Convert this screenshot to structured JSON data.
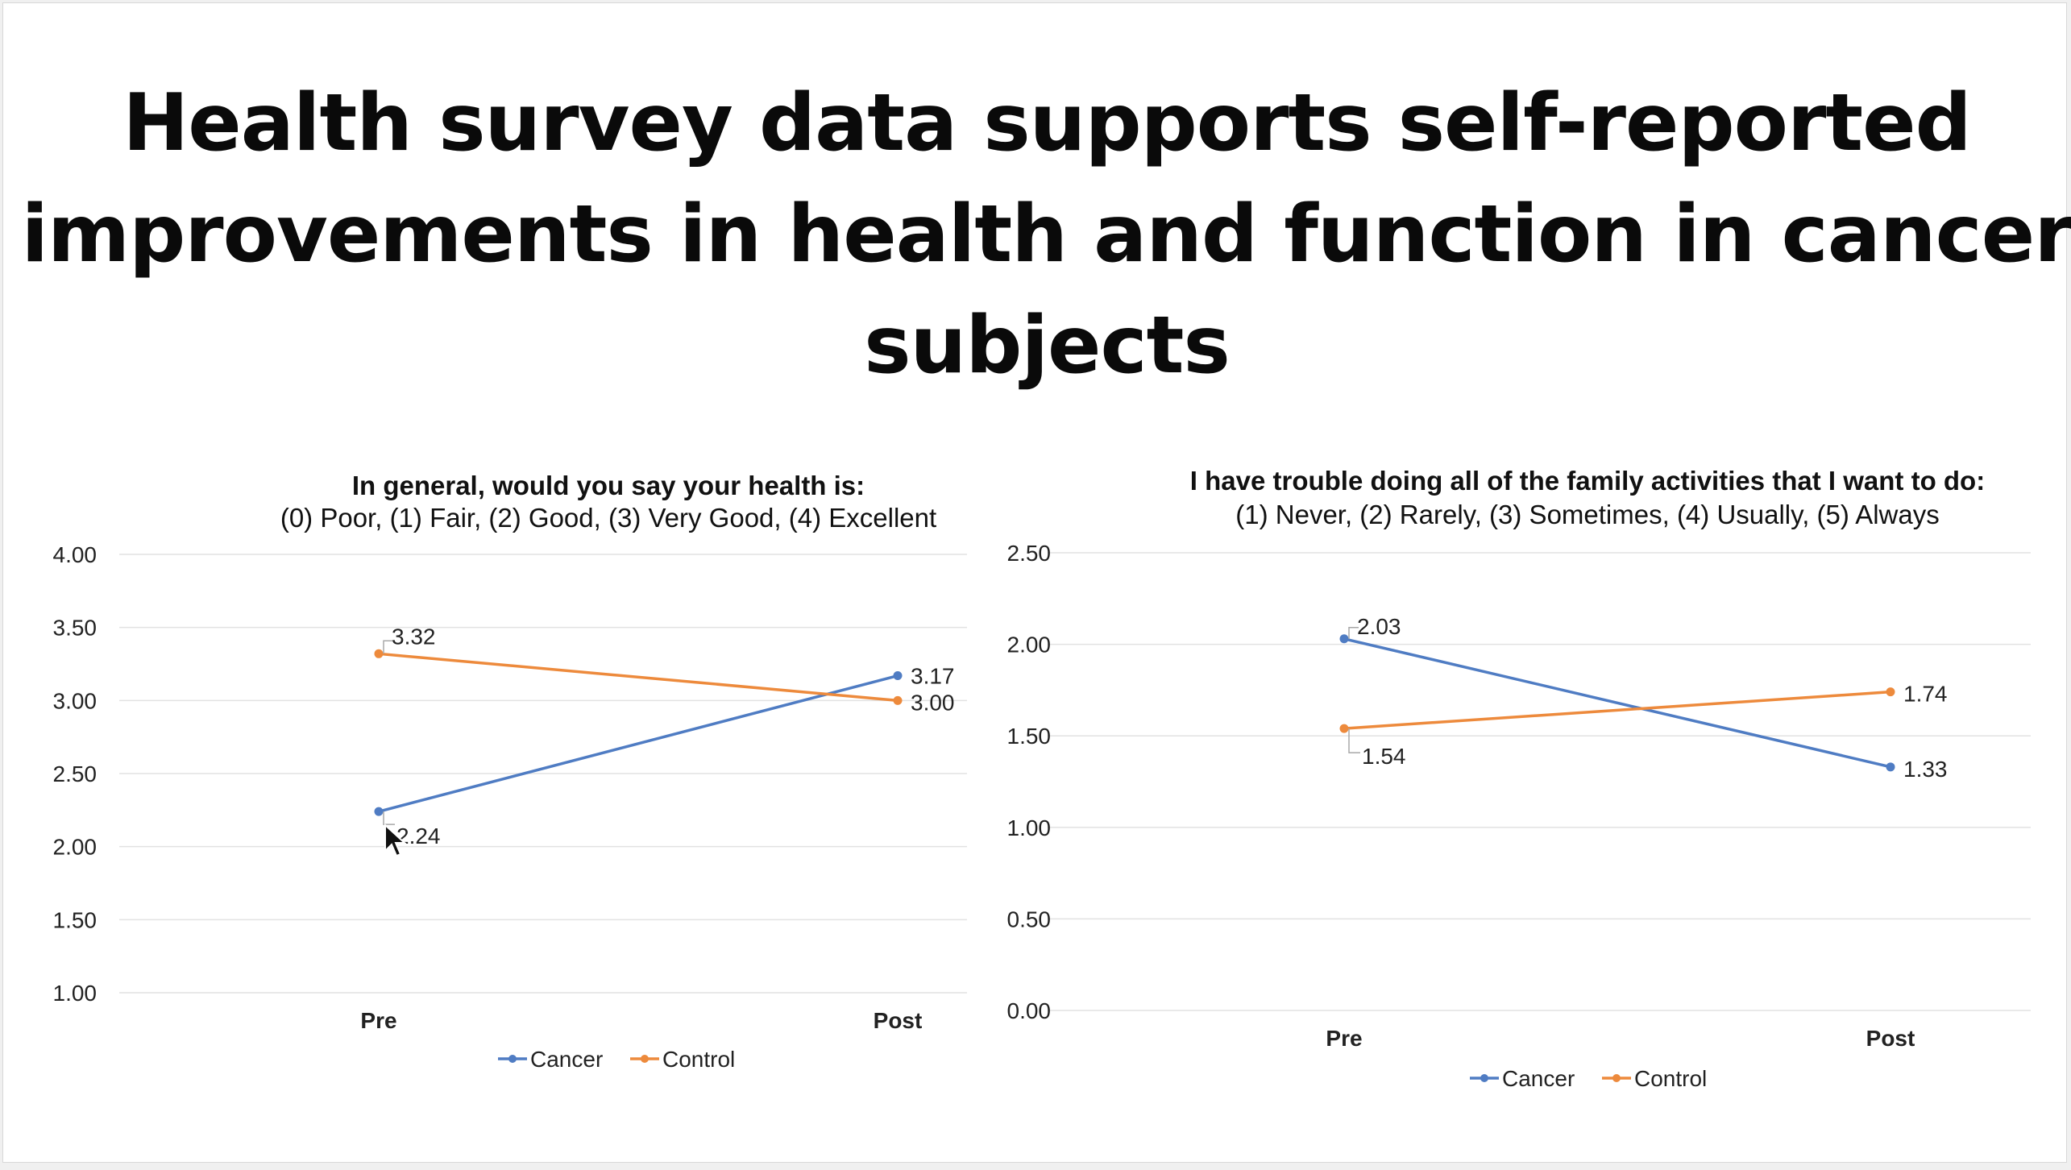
{
  "slide": {
    "title": "Health survey data supports self-reported improvements in health and function in cancer subjects"
  },
  "colors": {
    "cancer": "#4f7cc3",
    "control": "#ed8a3c"
  },
  "chart_data": [
    {
      "type": "line",
      "title": "In general, would you say your health is:",
      "subtitle": "(0) Poor, (1) Fair, (2) Good, (3) Very Good, (4) Excellent",
      "categories": [
        "Pre",
        "Post"
      ],
      "series": [
        {
          "name": "Cancer",
          "values": [
            2.24,
            3.17
          ],
          "labels": [
            "2.24",
            "3.17"
          ]
        },
        {
          "name": "Control",
          "values": [
            3.32,
            3.0
          ],
          "labels": [
            "3.32",
            "3.00"
          ]
        }
      ],
      "ylim": [
        1.0,
        4.0
      ],
      "yticks": [
        "4.00",
        "3.50",
        "3.00",
        "2.50",
        "2.00",
        "1.50",
        "1.00"
      ],
      "xlabel": "",
      "ylabel": "",
      "grid": true,
      "legend": "bottom"
    },
    {
      "type": "line",
      "title": "I have trouble doing all of the family activities that I want to do:",
      "subtitle": "(1) Never, (2) Rarely, (3) Sometimes, (4) Usually, (5) Always",
      "categories": [
        "Pre",
        "Post"
      ],
      "series": [
        {
          "name": "Cancer",
          "values": [
            2.03,
            1.33
          ],
          "labels": [
            "2.03",
            "1.33"
          ]
        },
        {
          "name": "Control",
          "values": [
            1.54,
            1.74
          ],
          "labels": [
            "1.54",
            "1.74"
          ]
        }
      ],
      "ylim": [
        0.0,
        2.5
      ],
      "yticks": [
        "2.50",
        "2.00",
        "1.50",
        "1.00",
        "0.50",
        "0.00"
      ],
      "xlabel": "",
      "ylabel": "",
      "grid": true,
      "legend": "bottom"
    }
  ]
}
